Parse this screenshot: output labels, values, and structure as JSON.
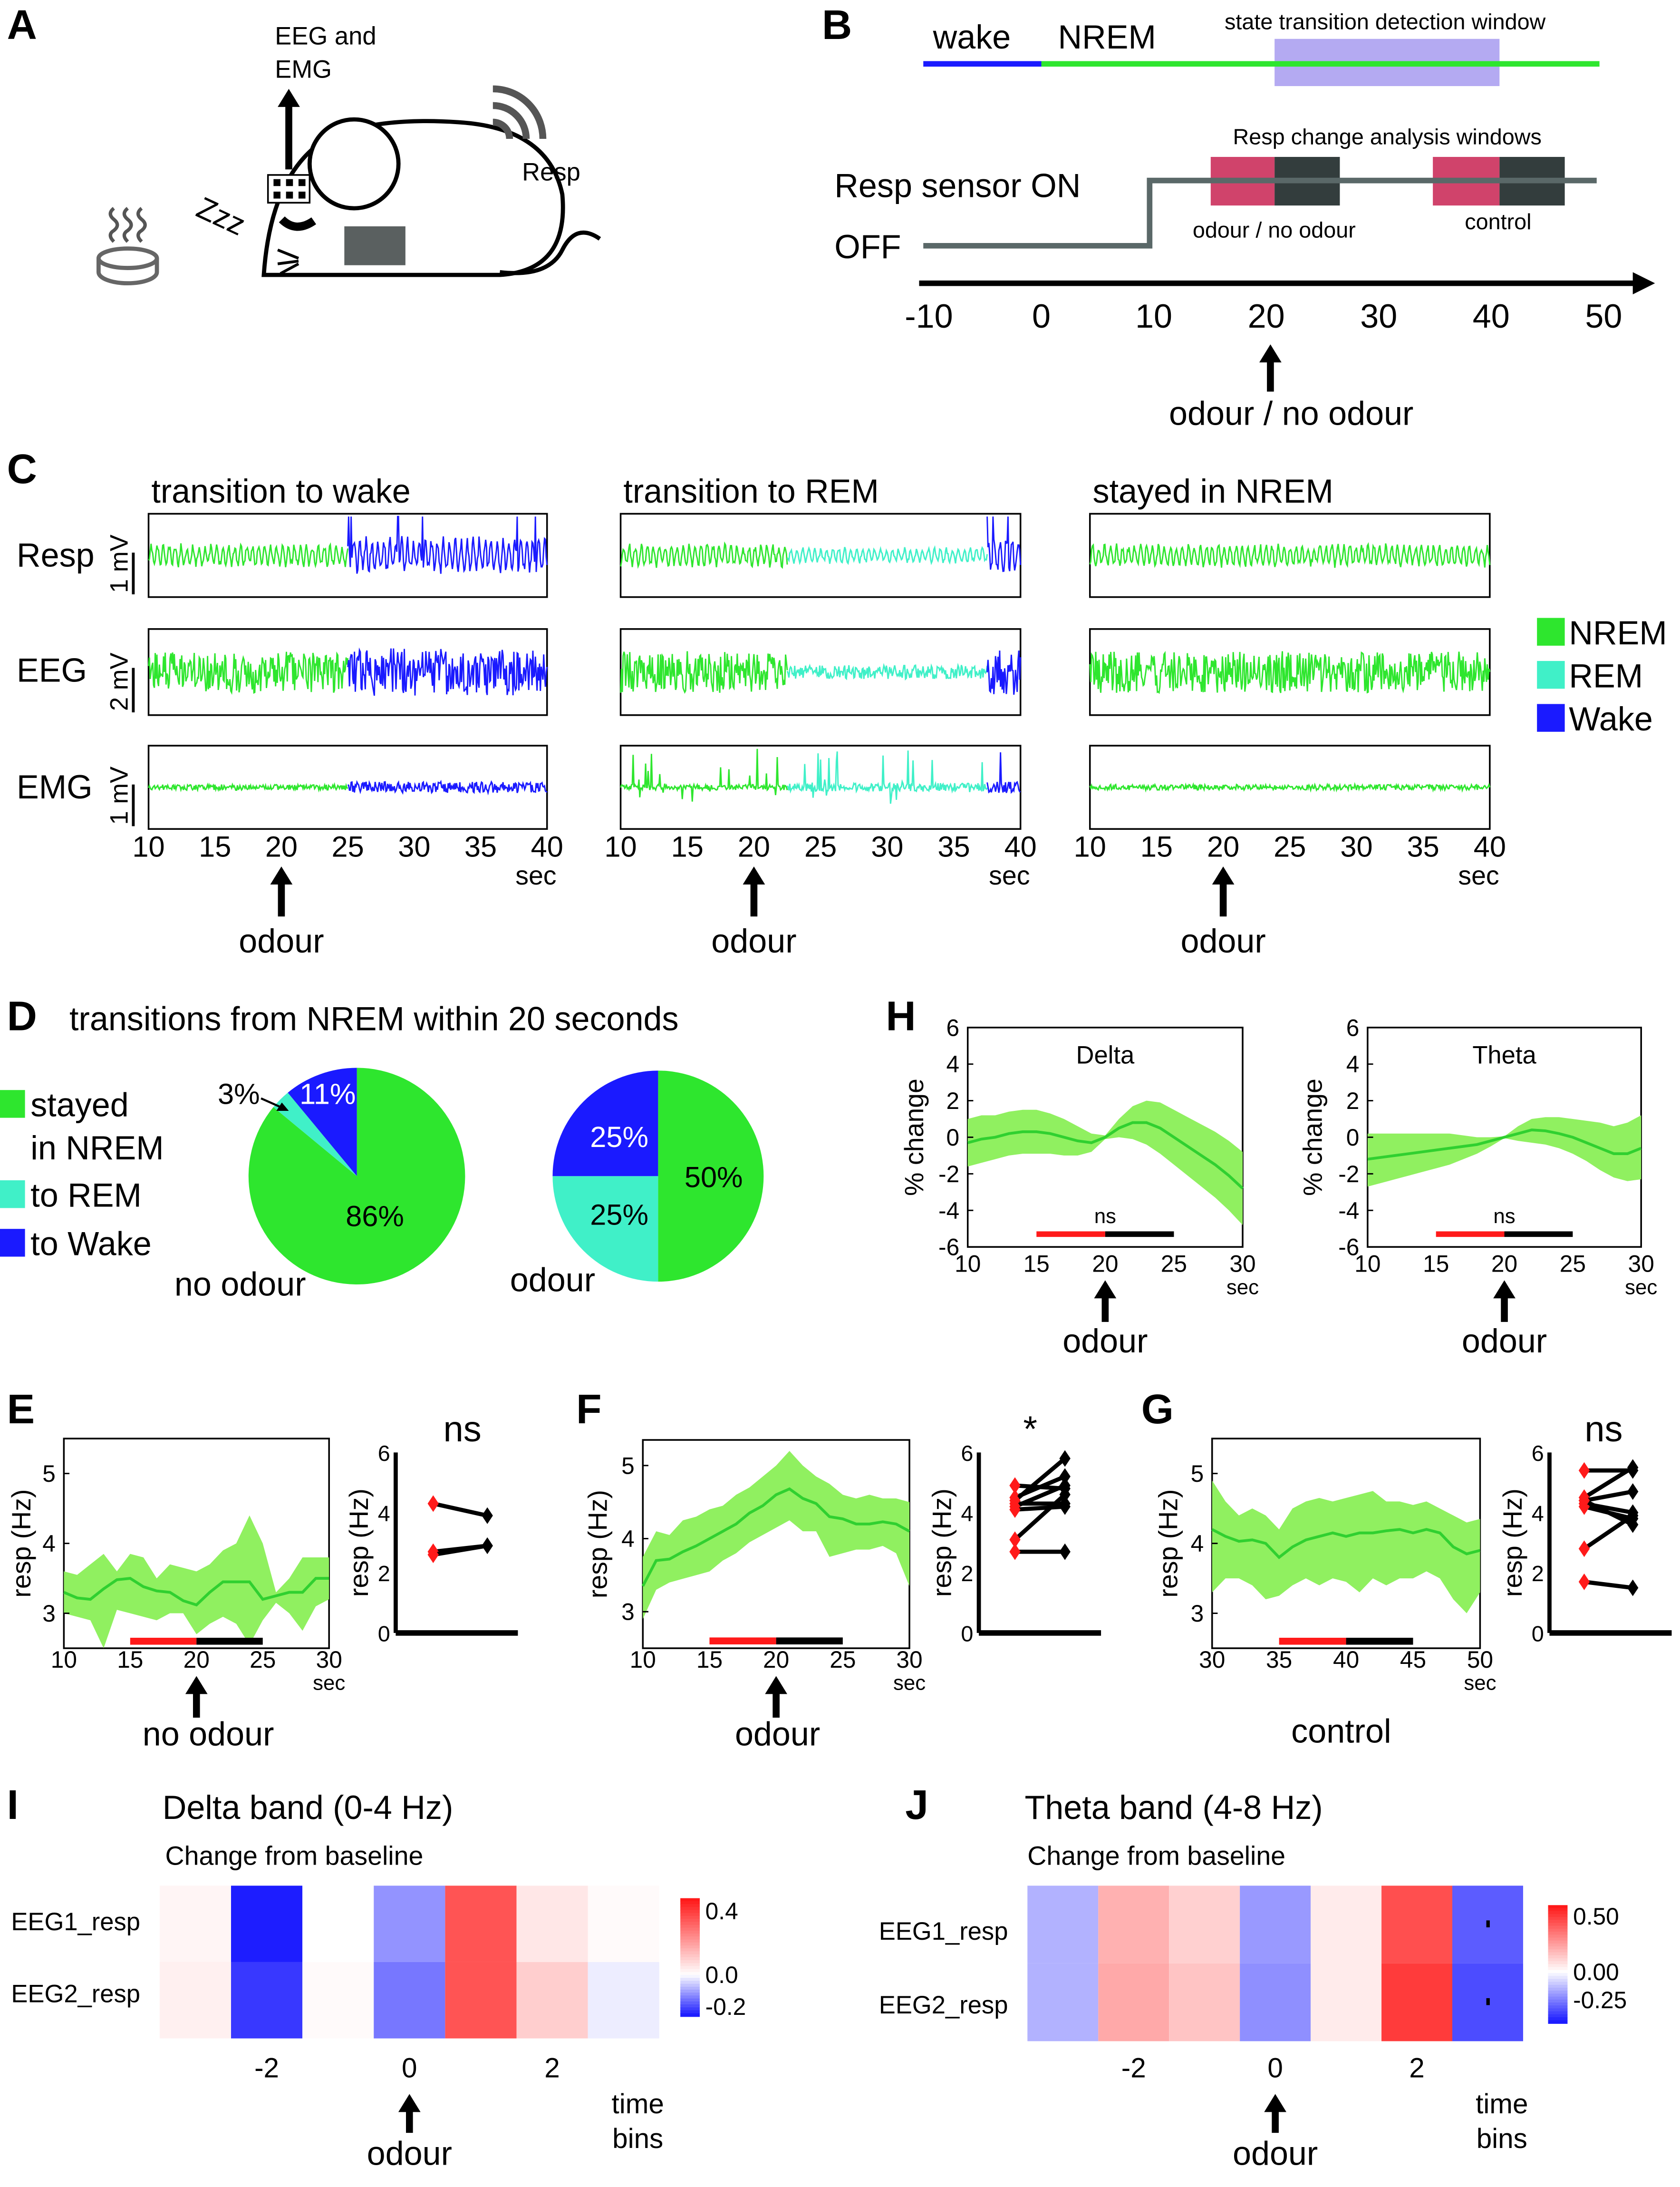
{
  "letters": {
    "A": "A",
    "B": "B",
    "C": "C",
    "D": "D",
    "E": "E",
    "F": "F",
    "G": "G",
    "H": "H",
    "I": "I",
    "J": "J"
  },
  "colors": {
    "nrem": "#2ee62e",
    "rem": "#40f0c8",
    "wake": "#1a1aff",
    "band": "#90f060",
    "mean": "#30d030",
    "window": "#b4aaf2",
    "pink": "#d0436b",
    "dark": "#333d3d",
    "sensor": "#5a6868"
  },
  "panel_a": {
    "eeg_line1": "EEG and",
    "eeg_line2": "EMG",
    "resp": "Resp",
    "zzz": "Zzz"
  },
  "panel_b": {
    "wake": "wake",
    "nrem": "NREM",
    "detection_window": "state transition detection window",
    "analysis_windows": "Resp change analysis windows",
    "sensor_on": "Resp sensor ON",
    "sensor_off": "OFF",
    "odour_window": "odour / no odour",
    "control_window": "control",
    "ticks": [
      "-10",
      "0",
      "10",
      "20",
      "30",
      "40",
      "50"
    ],
    "stimulus": "odour / no odour"
  },
  "panel_c": {
    "rows": [
      {
        "label": "Resp",
        "scale": "1 mV"
      },
      {
        "label": "EEG",
        "scale": "2 mV"
      },
      {
        "label": "EMG",
        "scale": "1 mV"
      }
    ],
    "ticks": [
      "10",
      "15",
      "20",
      "25",
      "30",
      "35",
      "40"
    ],
    "unit": "sec",
    "stimulus": "odour",
    "columns": [
      {
        "title": "transition to wake",
        "segments": [
          {
            "state": "NREM",
            "from": 10,
            "to": 25
          },
          {
            "state": "Wake",
            "from": 25,
            "to": 40
          }
        ]
      },
      {
        "title": "transition to REM",
        "segments": [
          {
            "state": "NREM",
            "from": 10,
            "to": 22.5
          },
          {
            "state": "REM",
            "from": 22.5,
            "to": 37.5
          },
          {
            "state": "Wake",
            "from": 37.5,
            "to": 40
          }
        ]
      },
      {
        "title": "stayed in NREM",
        "segments": [
          {
            "state": "NREM",
            "from": 10,
            "to": 40
          }
        ]
      }
    ],
    "legend": [
      {
        "label": "NREM",
        "color": "#2ee62e"
      },
      {
        "label": "REM",
        "color": "#40f0c8"
      },
      {
        "label": "Wake",
        "color": "#1a1aff"
      }
    ]
  },
  "panel_d": {
    "title": "transitions from NREM within 20 seconds",
    "legend": [
      {
        "text": [
          "stayed",
          "in NREM"
        ],
        "color": "#2ee62e"
      },
      {
        "text": [
          "to REM"
        ],
        "color": "#40f0c8"
      },
      {
        "text": [
          "to Wake"
        ],
        "color": "#1a1aff"
      }
    ]
  },
  "chart_data": [
    {
      "id": "D-no-odour",
      "type": "pie",
      "title": "no odour",
      "categories": [
        "stayed in NREM",
        "to REM",
        "to Wake"
      ],
      "values": [
        86,
        3,
        11
      ],
      "value_labels": [
        "86%",
        "3%",
        "11%"
      ],
      "colors": [
        "#2ee62e",
        "#40f0c8",
        "#1a1aff"
      ]
    },
    {
      "id": "D-odour",
      "type": "pie",
      "title": "odour",
      "categories": [
        "stayed in NREM",
        "to REM",
        "to Wake"
      ],
      "values": [
        50,
        25,
        25
      ],
      "value_labels": [
        "50%",
        "25%",
        "25%"
      ],
      "colors": [
        "#2ee62e",
        "#40f0c8",
        "#1a1aff"
      ]
    },
    {
      "id": "H-delta",
      "type": "line",
      "title": "Delta",
      "ylabel": "% change",
      "xunit": "sec",
      "stimulus": "odour",
      "sig": "ns",
      "xlim": [
        10,
        30
      ],
      "ylim": [
        -6,
        6
      ],
      "xticks": [
        10,
        15,
        20,
        25,
        30
      ],
      "yticks": [
        -6,
        -4,
        -2,
        0,
        2,
        4,
        6
      ],
      "bar_y": -5.3,
      "bars": [
        {
          "from": 15,
          "to": 20,
          "color": "#ff1a1a"
        },
        {
          "from": 20,
          "to": 25,
          "color": "#000000"
        }
      ],
      "x": [
        10,
        11,
        12,
        13,
        14,
        15,
        16,
        17,
        18,
        19,
        20,
        21,
        22,
        23,
        24,
        25,
        26,
        27,
        28,
        29,
        30
      ],
      "mean": [
        -0.3,
        -0.1,
        0,
        0.2,
        0.3,
        0.3,
        0.2,
        0,
        -0.2,
        -0.3,
        0,
        0.5,
        0.8,
        0.8,
        0.5,
        0,
        -0.5,
        -1.0,
        -1.5,
        -2.1,
        -2.8
      ],
      "upper": [
        1.0,
        1.2,
        1.2,
        1.4,
        1.5,
        1.5,
        1.3,
        1.0,
        0.6,
        0.2,
        0.1,
        1.0,
        1.7,
        2.0,
        1.9,
        1.5,
        1.1,
        0.7,
        0.3,
        -0.2,
        -0.8
      ],
      "lower": [
        -1.6,
        -1.4,
        -1.2,
        -1.0,
        -0.9,
        -0.9,
        -0.9,
        -1.0,
        -1.0,
        -0.8,
        -0.1,
        0.0,
        -0.1,
        -0.4,
        -0.9,
        -1.5,
        -2.1,
        -2.7,
        -3.3,
        -4.0,
        -4.8
      ]
    },
    {
      "id": "H-theta",
      "type": "line",
      "title": "Theta",
      "ylabel": "% change",
      "xunit": "sec",
      "stimulus": "odour",
      "sig": "ns",
      "xlim": [
        10,
        30
      ],
      "ylim": [
        -6,
        6
      ],
      "xticks": [
        10,
        15,
        20,
        25,
        30
      ],
      "yticks": [
        -6,
        -4,
        -2,
        0,
        2,
        4,
        6
      ],
      "bar_y": -5.3,
      "bars": [
        {
          "from": 15,
          "to": 20,
          "color": "#ff1a1a"
        },
        {
          "from": 20,
          "to": 25,
          "color": "#000000"
        }
      ],
      "x": [
        10,
        11,
        12,
        13,
        14,
        15,
        16,
        17,
        18,
        19,
        20,
        21,
        22,
        23,
        24,
        25,
        26,
        27,
        28,
        29,
        30
      ],
      "mean": [
        -1.2,
        -1.1,
        -1.0,
        -0.9,
        -0.8,
        -0.7,
        -0.6,
        -0.5,
        -0.4,
        -0.2,
        0,
        0.2,
        0.4,
        0.35,
        0.2,
        0,
        -0.3,
        -0.6,
        -0.9,
        -0.9,
        -0.6
      ],
      "upper": [
        0.2,
        0.2,
        0.2,
        0.2,
        0.2,
        0.2,
        0.2,
        0.1,
        0.0,
        0.0,
        0.05,
        0.6,
        1.0,
        1.1,
        1.1,
        1.0,
        0.9,
        0.8,
        0.6,
        0.8,
        1.2
      ],
      "lower": [
        -2.7,
        -2.5,
        -2.3,
        -2.1,
        -1.9,
        -1.7,
        -1.5,
        -1.2,
        -0.9,
        -0.5,
        -0.05,
        -0.2,
        -0.3,
        -0.4,
        -0.6,
        -0.9,
        -1.3,
        -1.8,
        -2.2,
        -2.4,
        -2.3
      ]
    },
    {
      "id": "E-trace",
      "type": "line",
      "title": "",
      "ylabel": "resp (Hz)",
      "xunit": "sec",
      "stimulus": "no odour",
      "xlim": [
        10,
        30
      ],
      "ylim": [
        2.5,
        5.5
      ],
      "xticks": [
        10,
        15,
        20,
        25,
        30
      ],
      "yticks": [
        3,
        4,
        5
      ],
      "bar_y": 2.6,
      "bars": [
        {
          "from": 15,
          "to": 20,
          "color": "#ff1a1a"
        },
        {
          "from": 20,
          "to": 25,
          "color": "#000000"
        }
      ],
      "x": [
        10,
        11,
        12,
        13,
        14,
        15,
        16,
        17,
        18,
        19,
        20,
        21,
        22,
        23,
        24,
        25,
        26,
        27,
        28,
        29,
        30
      ],
      "mean": [
        3.3,
        3.22,
        3.2,
        3.35,
        3.48,
        3.5,
        3.38,
        3.32,
        3.3,
        3.18,
        3.12,
        3.3,
        3.45,
        3.45,
        3.45,
        3.2,
        3.25,
        3.3,
        3.3,
        3.5,
        3.5
      ],
      "upper": [
        3.6,
        3.55,
        3.7,
        3.85,
        3.6,
        3.85,
        3.8,
        3.5,
        3.7,
        3.65,
        3.6,
        3.7,
        3.9,
        4.0,
        4.4,
        4.0,
        3.3,
        3.5,
        3.8,
        3.8,
        3.8
      ],
      "lower": [
        3.0,
        2.95,
        2.9,
        2.5,
        3.05,
        3.0,
        2.95,
        2.9,
        3.0,
        3.0,
        2.7,
        2.85,
        2.95,
        2.85,
        2.55,
        2.9,
        3.15,
        3.0,
        2.75,
        3.1,
        3.2
      ]
    },
    {
      "id": "E-paired",
      "type": "scatter",
      "ylabel": "resp (Hz)",
      "sig": "ns",
      "ylim": [
        0,
        6
      ],
      "yticks": [
        0,
        2,
        4,
        6
      ],
      "pre": [
        4.3,
        2.7,
        2.6
      ],
      "post": [
        3.9,
        2.9,
        2.9
      ]
    },
    {
      "id": "F-trace",
      "type": "line",
      "title": "",
      "ylabel": "resp (Hz)",
      "xunit": "sec",
      "stimulus": "odour",
      "xlim": [
        10,
        30
      ],
      "ylim": [
        2.5,
        5.35
      ],
      "xticks": [
        10,
        15,
        20,
        25,
        30
      ],
      "yticks": [
        3,
        4,
        5
      ],
      "bar_y": 2.6,
      "bars": [
        {
          "from": 15,
          "to": 20,
          "color": "#ff1a1a"
        },
        {
          "from": 20,
          "to": 25,
          "color": "#000000"
        }
      ],
      "x": [
        10,
        11,
        12,
        13,
        14,
        15,
        16,
        17,
        18,
        19,
        20,
        21,
        22,
        23,
        24,
        25,
        26,
        27,
        28,
        29,
        30
      ],
      "mean": [
        3.35,
        3.7,
        3.72,
        3.82,
        3.9,
        4.0,
        4.1,
        4.2,
        4.35,
        4.45,
        4.6,
        4.68,
        4.55,
        4.48,
        4.3,
        4.27,
        4.2,
        4.2,
        4.23,
        4.2,
        4.1
      ],
      "upper": [
        3.75,
        4.1,
        4.05,
        4.25,
        4.3,
        4.4,
        4.45,
        4.6,
        4.7,
        4.85,
        5.0,
        5.2,
        5.0,
        4.85,
        4.75,
        4.6,
        4.55,
        4.6,
        4.55,
        4.55,
        4.5
      ],
      "lower": [
        2.9,
        3.3,
        3.4,
        3.45,
        3.5,
        3.55,
        3.7,
        3.8,
        3.95,
        4.05,
        4.15,
        4.25,
        4.1,
        4.1,
        3.75,
        3.8,
        3.85,
        3.85,
        3.9,
        3.8,
        3.35
      ]
    },
    {
      "id": "F-paired",
      "type": "scatter",
      "ylabel": "resp (Hz)",
      "sig": "*",
      "ylim": [
        0,
        6
      ],
      "yticks": [
        0,
        2,
        4,
        6
      ],
      "pre": [
        4.9,
        4.5,
        4.4,
        4.3,
        4.2,
        4.1,
        3.1,
        2.7
      ],
      "post": [
        4.8,
        5.2,
        5.8,
        4.3,
        4.9,
        4.2,
        4.6,
        2.7
      ]
    },
    {
      "id": "G-trace",
      "type": "line",
      "title": "",
      "ylabel": "resp (Hz)",
      "xunit": "sec",
      "stimulus": "control",
      "xlim": [
        30,
        50
      ],
      "ylim": [
        2.5,
        5.5
      ],
      "xticks": [
        30,
        35,
        40,
        45,
        50
      ],
      "yticks": [
        3,
        4,
        5
      ],
      "bar_y": 2.6,
      "bars": [
        {
          "from": 35,
          "to": 40,
          "color": "#ff1a1a"
        },
        {
          "from": 40,
          "to": 45,
          "color": "#000000"
        }
      ],
      "x": [
        30,
        31,
        32,
        33,
        34,
        35,
        36,
        37,
        38,
        39,
        40,
        41,
        42,
        43,
        44,
        45,
        46,
        47,
        48,
        49,
        50
      ],
      "mean": [
        4.2,
        4.1,
        4.03,
        4.05,
        4.0,
        3.8,
        3.95,
        4.05,
        4.1,
        4.15,
        4.1,
        4.15,
        4.15,
        4.18,
        4.2,
        4.15,
        4.2,
        4.15,
        3.95,
        3.85,
        3.9
      ],
      "upper": [
        4.9,
        4.6,
        4.4,
        4.5,
        4.4,
        4.2,
        4.5,
        4.6,
        4.65,
        4.6,
        4.65,
        4.7,
        4.75,
        4.6,
        4.6,
        4.55,
        4.6,
        4.5,
        4.4,
        4.3,
        4.35
      ],
      "lower": [
        3.3,
        3.5,
        3.5,
        3.4,
        3.2,
        3.25,
        3.4,
        3.5,
        3.4,
        3.5,
        3.45,
        3.3,
        3.5,
        3.4,
        3.5,
        3.5,
        3.6,
        3.5,
        3.2,
        3.0,
        3.3
      ]
    },
    {
      "id": "G-paired",
      "type": "scatter",
      "ylabel": "resp (Hz)",
      "sig": "ns",
      "ylim": [
        0,
        6
      ],
      "yticks": [
        0,
        2,
        4,
        6
      ],
      "pre": [
        5.4,
        4.5,
        4.4,
        4.3,
        4.2,
        4.4,
        2.8,
        1.7
      ],
      "post": [
        5.4,
        5.5,
        4.7,
        4.0,
        3.8,
        3.6,
        3.9,
        1.5
      ]
    },
    {
      "id": "I-heatmap",
      "type": "heatmap",
      "title": "Delta band (0-4 Hz)",
      "subtitle": "Change from baseline",
      "rows": [
        "EEG1_resp",
        "EEG2_resp"
      ],
      "time_bins": [
        -3,
        -2,
        -1,
        0,
        1,
        2,
        3
      ],
      "xtick_labels": [
        "-2",
        "0",
        "2"
      ],
      "xlabel": [
        "time",
        "bins"
      ],
      "stimulus": "odour",
      "values": [
        [
          0.02,
          -0.25,
          0.0,
          -0.12,
          0.35,
          0.05,
          0.01
        ],
        [
          0.03,
          -0.22,
          0.01,
          -0.15,
          0.35,
          0.1,
          -0.02
        ]
      ],
      "clim": [
        -0.26,
        0.48
      ],
      "colorbar_ticks": [
        "0.4",
        "0.0",
        "-0.2"
      ],
      "colorbar_values": [
        0.4,
        0.0,
        -0.2
      ]
    },
    {
      "id": "J-heatmap",
      "type": "heatmap",
      "title": "Theta band (4-8 Hz)",
      "subtitle": "Change from baseline",
      "rows": [
        "EEG1_resp",
        "EEG2_resp"
      ],
      "time_bins": [
        -3,
        -2,
        -1,
        0,
        1,
        2,
        3
      ],
      "xtick_labels": [
        "-2",
        "0",
        "2"
      ],
      "xlabel": [
        "time",
        "bins"
      ],
      "stimulus": "odour",
      "values": [
        [
          -0.15,
          0.2,
          0.12,
          -0.2,
          0.05,
          0.45,
          -0.32
        ],
        [
          -0.15,
          0.22,
          0.15,
          -0.22,
          0.05,
          0.5,
          -0.35
        ]
      ],
      "marked_bins": [
        6
      ],
      "clim": [
        -0.46,
        0.6
      ],
      "colorbar_ticks": [
        "0.50",
        "0.00",
        "-0.25"
      ],
      "colorbar_values": [
        0.5,
        0.0,
        -0.25
      ]
    }
  ]
}
